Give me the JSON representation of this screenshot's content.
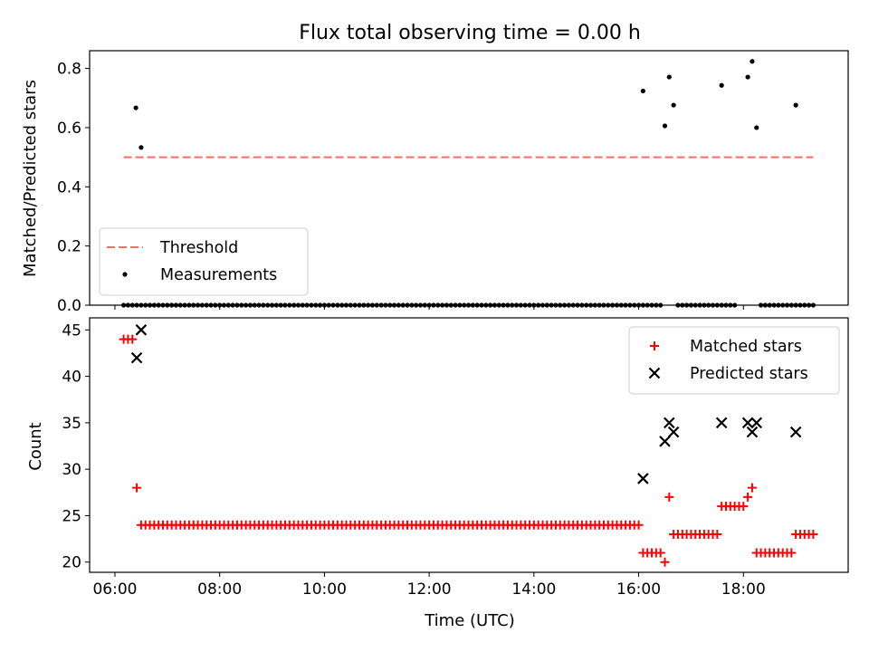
{
  "chart_data": [
    {
      "type": "scatter",
      "title": "Flux total observing time = 0.00 h",
      "ylabel": "Matched/Predicted stars",
      "xlim": [
        "05:31",
        "20:00"
      ],
      "ylim": [
        0,
        0.86
      ],
      "yticks": [
        "0.0",
        "0.2",
        "0.4",
        "0.6",
        "0.8"
      ],
      "ytick_values": [
        0,
        0.2,
        0.4,
        0.6,
        0.8
      ],
      "xticks": [
        "06:00",
        "08:00",
        "10:00",
        "12:00",
        "14:00",
        "16:00",
        "18:00"
      ],
      "legend_position": "lower-left",
      "threshold": {
        "name": "Threshold",
        "y": 0.5,
        "x_start": "06:10",
        "x_end": "19:20",
        "color": "#ff6b6b",
        "style": "dashed"
      },
      "series": [
        {
          "name": "Measurements",
          "color": "#000000",
          "marker": "dot",
          "points": [
            [
              "06:24",
              0.667
            ],
            [
              "06:30",
              0.533
            ],
            [
              "16:05",
              0.724
            ],
            [
              "16:30",
              0.606
            ],
            [
              "16:35",
              0.771
            ],
            [
              "16:40",
              0.676
            ],
            [
              "17:35",
              0.743
            ],
            [
              "18:05",
              0.771
            ],
            [
              "18:10",
              0.824
            ],
            [
              "18:15",
              0.6
            ],
            [
              "19:00",
              0.676
            ]
          ],
          "zero_range": [
            [
              "06:10",
              "16:00",
              5
            ],
            [
              "16:05",
              "16:25",
              5
            ],
            [
              "16:45",
              "17:50",
              5
            ],
            [
              "18:20",
              "19:20",
              5
            ]
          ]
        }
      ]
    },
    {
      "type": "scatter",
      "xlabel": "Time (UTC)",
      "ylabel": "Count",
      "xlim": [
        "05:31",
        "20:00"
      ],
      "ylim": [
        18.9,
        46.3
      ],
      "yticks": [
        "20",
        "25",
        "30",
        "35",
        "40",
        "45"
      ],
      "ytick_values": [
        20,
        25,
        30,
        35,
        40,
        45
      ],
      "xticks": [
        "06:00",
        "08:00",
        "10:00",
        "12:00",
        "14:00",
        "16:00",
        "18:00"
      ],
      "legend_position": "upper-right",
      "series": [
        {
          "name": "Matched stars",
          "color": "#ff0000",
          "marker": "plus",
          "points": [
            [
              "06:10",
              44
            ],
            [
              "06:15",
              44
            ],
            [
              "06:20",
              44
            ],
            [
              "06:25",
              28
            ],
            [
              "16:30",
              20
            ],
            [
              "16:35",
              27
            ],
            [
              "18:05",
              27
            ],
            [
              "18:10",
              28
            ]
          ],
          "ranges": [
            [
              "06:30",
              "16:00",
              5,
              24
            ],
            [
              "16:05",
              "16:25",
              5,
              21
            ],
            [
              "16:40",
              "17:30",
              5,
              23
            ],
            [
              "17:35",
              "18:00",
              5,
              26
            ],
            [
              "18:15",
              "18:55",
              5,
              21
            ],
            [
              "19:00",
              "19:20",
              5,
              23
            ]
          ]
        },
        {
          "name": "Predicted stars",
          "color": "#000000",
          "marker": "x",
          "points": [
            [
              "06:25",
              42
            ],
            [
              "06:30",
              45
            ],
            [
              "16:05",
              29
            ],
            [
              "16:30",
              33
            ],
            [
              "16:35",
              35
            ],
            [
              "16:40",
              34
            ],
            [
              "17:35",
              35
            ],
            [
              "18:05",
              35
            ],
            [
              "18:10",
              34
            ],
            [
              "18:15",
              35
            ],
            [
              "19:00",
              34
            ]
          ]
        }
      ]
    }
  ]
}
